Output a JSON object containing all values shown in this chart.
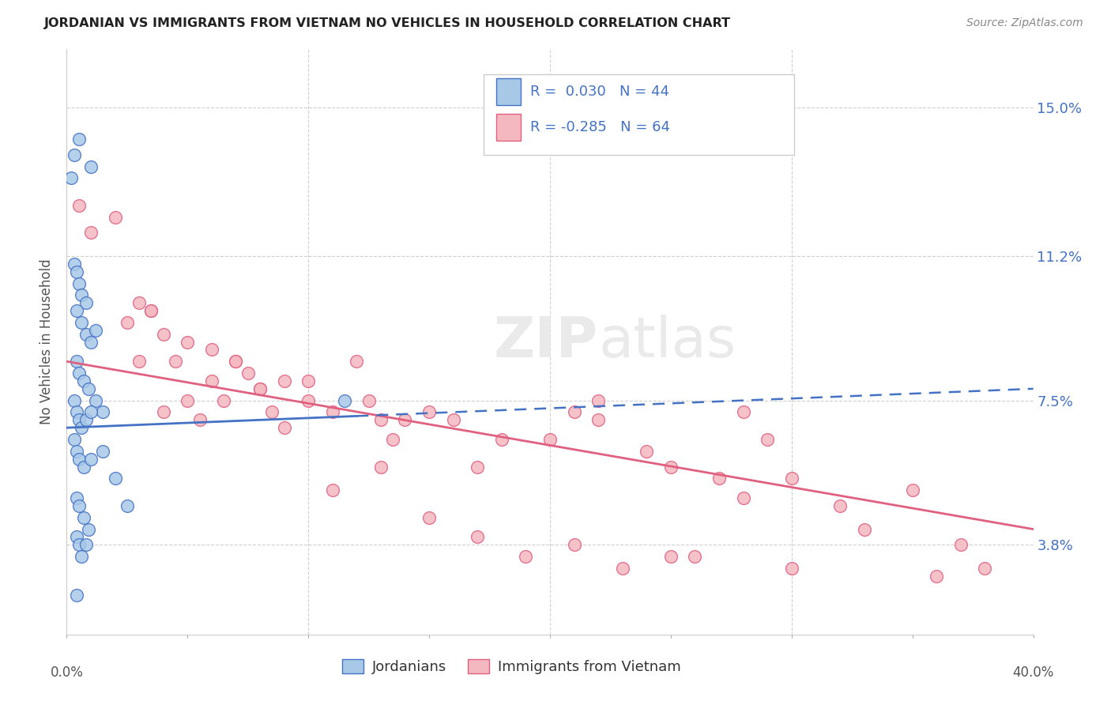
{
  "title": "JORDANIAN VS IMMIGRANTS FROM VIETNAM NO VEHICLES IN HOUSEHOLD CORRELATION CHART",
  "source": "Source: ZipAtlas.com",
  "ylabel": "No Vehicles in Household",
  "ytick_values": [
    3.8,
    7.5,
    11.2,
    15.0
  ],
  "xlim": [
    0.0,
    40.0
  ],
  "ylim": [
    1.5,
    16.5
  ],
  "color_jordanian": "#a8c8e8",
  "color_vietnam": "#f4b8c0",
  "color_jordanian_line": "#4472c4",
  "color_vietnam_line": "#e06080",
  "background_color": "#ffffff",
  "grid_color": "#d0d0d0",
  "jordanian_x": [
    0.3,
    0.5,
    1.0,
    0.3,
    0.4,
    0.5,
    0.6,
    0.8,
    0.4,
    0.6,
    0.8,
    1.0,
    1.2,
    0.4,
    0.5,
    0.7,
    0.9,
    1.2,
    1.5,
    0.3,
    0.4,
    0.5,
    0.6,
    0.8,
    1.0,
    0.3,
    0.4,
    0.5,
    0.7,
    1.0,
    1.5,
    2.0,
    0.4,
    0.5,
    0.7,
    0.9,
    2.5,
    0.4,
    0.5,
    0.6,
    0.8,
    0.4,
    11.5,
    0.2
  ],
  "jordanian_y": [
    13.8,
    14.2,
    13.5,
    11.0,
    10.8,
    10.5,
    10.2,
    10.0,
    9.8,
    9.5,
    9.2,
    9.0,
    9.3,
    8.5,
    8.2,
    8.0,
    7.8,
    7.5,
    7.2,
    7.5,
    7.2,
    7.0,
    6.8,
    7.0,
    7.2,
    6.5,
    6.2,
    6.0,
    5.8,
    6.0,
    6.2,
    5.5,
    5.0,
    4.8,
    4.5,
    4.2,
    4.8,
    4.0,
    3.8,
    3.5,
    3.8,
    2.5,
    7.5,
    13.2
  ],
  "vietnam_x": [
    0.5,
    1.0,
    2.0,
    2.5,
    3.0,
    3.5,
    4.0,
    4.5,
    5.0,
    6.0,
    7.0,
    7.5,
    8.0,
    9.0,
    3.0,
    3.5,
    4.0,
    5.0,
    5.5,
    6.0,
    6.5,
    7.0,
    8.0,
    8.5,
    9.0,
    10.0,
    10.0,
    11.0,
    12.0,
    12.5,
    13.0,
    13.5,
    14.0,
    15.0,
    16.0,
    17.0,
    18.0,
    20.0,
    21.0,
    22.0,
    24.0,
    25.0,
    27.0,
    28.0,
    29.0,
    30.0,
    32.0,
    33.0,
    35.0,
    37.0,
    11.0,
    13.0,
    15.0,
    17.0,
    19.0,
    21.0,
    23.0,
    26.0,
    30.0,
    36.0,
    38.0,
    22.0,
    25.0,
    28.0
  ],
  "vietnam_y": [
    12.5,
    11.8,
    12.2,
    9.5,
    10.0,
    9.8,
    9.2,
    8.5,
    9.0,
    8.8,
    8.5,
    8.2,
    7.8,
    8.0,
    8.5,
    9.8,
    7.2,
    7.5,
    7.0,
    8.0,
    7.5,
    8.5,
    7.8,
    7.2,
    6.8,
    7.5,
    8.0,
    7.2,
    8.5,
    7.5,
    7.0,
    6.5,
    7.0,
    7.2,
    7.0,
    5.8,
    6.5,
    6.5,
    7.2,
    7.0,
    6.2,
    5.8,
    5.5,
    5.0,
    6.5,
    5.5,
    4.8,
    4.2,
    5.2,
    3.8,
    5.2,
    5.8,
    4.5,
    4.0,
    3.5,
    3.8,
    3.2,
    3.5,
    3.2,
    3.0,
    3.2,
    7.5,
    3.5,
    7.2
  ],
  "jordanian_line_x0": 0.0,
  "jordanian_line_y0": 6.8,
  "jordanian_line_x1": 40.0,
  "jordanian_line_y1": 7.8,
  "jordan_solid_xmax": 12.0,
  "vietnam_line_x0": 0.0,
  "vietnam_line_y0": 8.5,
  "vietnam_line_x1": 40.0,
  "vietnam_line_y1": 4.2
}
